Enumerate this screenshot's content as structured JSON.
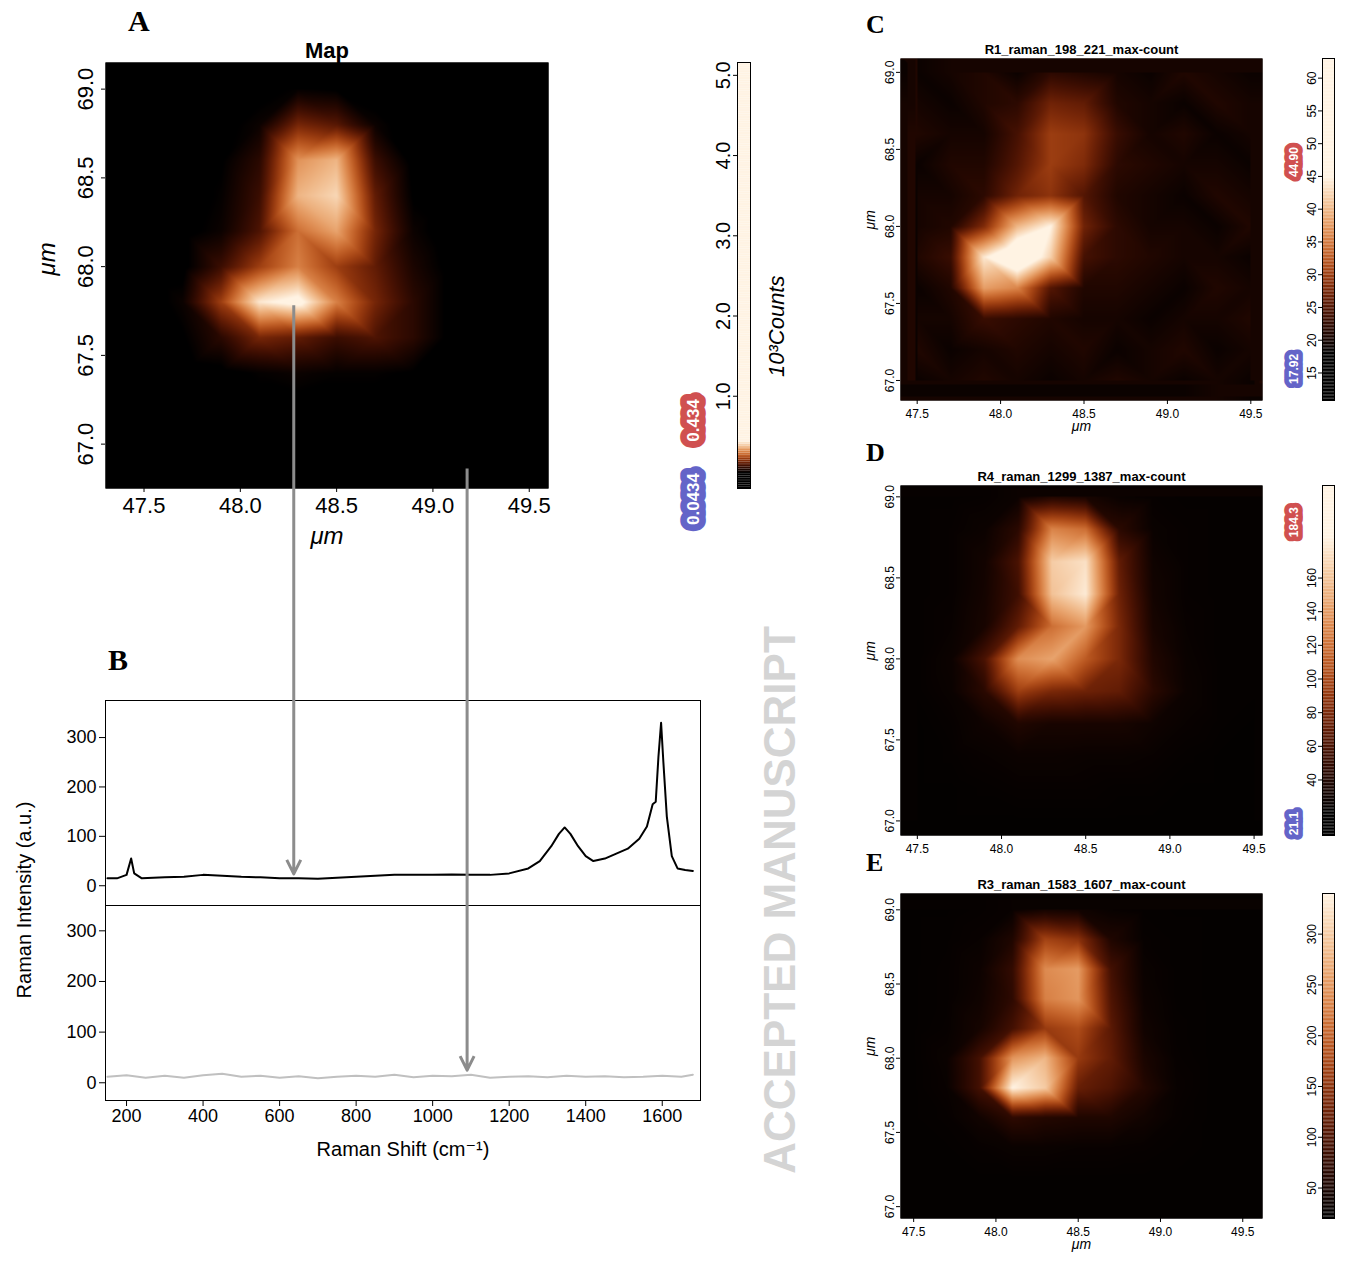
{
  "chart_data": [
    {
      "panel": "A",
      "type": "heatmap",
      "title": "Map",
      "xlabel": "μm",
      "ylabel": "μm",
      "xlim": [
        47.3,
        49.6
      ],
      "ylim": [
        66.75,
        69.15
      ],
      "xticks": [
        47.5,
        {
          "value": 48,
          "label": "48.0"
        },
        48.5,
        {
          "value": 49,
          "label": "49.0"
        },
        49.5
      ],
      "yticks": [
        {
          "value": 67,
          "label": "67.0"
        },
        67.5,
        {
          "value": 68,
          "label": "68.0"
        },
        68.5,
        {
          "value": 69,
          "label": "69.0"
        }
      ],
      "x": [
        47.5,
        47.7,
        47.9,
        48.1,
        48.3,
        48.5,
        48.7,
        48.9,
        49.1,
        49.3,
        49.5
      ],
      "y": [
        69.0,
        68.8,
        68.6,
        68.4,
        68.2,
        68.0,
        67.8,
        67.6,
        67.4,
        67.2,
        67.0
      ],
      "z": [
        [
          0.02,
          0.02,
          0.02,
          0.03,
          0.05,
          0.04,
          0.02,
          0.02,
          0.02,
          0.02,
          0.02
        ],
        [
          0.02,
          0.02,
          0.03,
          0.06,
          0.18,
          0.15,
          0.06,
          0.02,
          0.02,
          0.02,
          0.02
        ],
        [
          0.02,
          0.02,
          0.04,
          0.1,
          0.32,
          0.36,
          0.12,
          0.03,
          0.02,
          0.02,
          0.02
        ],
        [
          0.02,
          0.02,
          0.05,
          0.12,
          0.36,
          0.4,
          0.16,
          0.04,
          0.02,
          0.02,
          0.02
        ],
        [
          0.02,
          0.03,
          0.06,
          0.14,
          0.28,
          0.34,
          0.18,
          0.06,
          0.02,
          0.02,
          0.02
        ],
        [
          0.02,
          0.03,
          0.12,
          0.22,
          0.3,
          0.22,
          0.16,
          0.08,
          0.03,
          0.02,
          0.02
        ],
        [
          0.02,
          0.06,
          0.22,
          0.42,
          0.46,
          0.3,
          0.18,
          0.1,
          0.03,
          0.02,
          0.02
        ],
        [
          0.02,
          0.04,
          0.1,
          0.18,
          0.16,
          0.12,
          0.14,
          0.1,
          0.03,
          0.02,
          0.02
        ],
        [
          0.02,
          0.02,
          0.03,
          0.05,
          0.06,
          0.05,
          0.05,
          0.04,
          0.02,
          0.02,
          0.02
        ],
        [
          0.02,
          0.02,
          0.02,
          0.03,
          0.03,
          0.03,
          0.03,
          0.02,
          0.02,
          0.02,
          0.02
        ],
        [
          0.02,
          0.02,
          0.02,
          0.02,
          0.02,
          0.02,
          0.02,
          0.02,
          0.02,
          0.02,
          0.02
        ]
      ],
      "points": [
        {
          "x": 48.28,
          "y": 67.78
        },
        {
          "x": 49.18,
          "y": 66.86
        }
      ],
      "colorbar": {
        "label": "10³Counts",
        "lim": [
          -0.15,
          5.16
        ],
        "ticks": [
          {
            "value": 1,
            "label": "1.0"
          },
          {
            "value": 2,
            "label": "2.0"
          },
          {
            "value": 3,
            "label": "3.0"
          },
          {
            "value": 4,
            "label": "4.0"
          },
          {
            "value": 5,
            "label": "5.0"
          }
        ],
        "clim": [
          0.0434,
          0.434
        ]
      }
    },
    {
      "panel": "B",
      "type": "line",
      "xlabel": "Raman Shift (cm⁻¹)",
      "ylabel": "Raman Intensity (a.u.)",
      "xlim": [
        145,
        1700
      ],
      "xticks": [
        200,
        400,
        600,
        800,
        1000,
        1200,
        1400,
        1600
      ],
      "subplots": [
        {
          "ylim": [
            -40,
            375
          ],
          "yticks": [
            0,
            100,
            200,
            300
          ],
          "series": [
            {
              "color": "#000000",
              "x": [
                150,
                175,
                200,
                212,
                220,
                240,
                300,
                350,
                400,
                450,
                500,
                550,
                600,
                650,
                700,
                750,
                800,
                850,
                900,
                950,
                1000,
                1050,
                1100,
                1150,
                1200,
                1250,
                1280,
                1310,
                1330,
                1345,
                1360,
                1380,
                1400,
                1420,
                1450,
                1480,
                1510,
                1540,
                1560,
                1575,
                1583,
                1590,
                1597,
                1603,
                1612,
                1625,
                1640,
                1660,
                1680
              ],
              "values": [
                15,
                15,
                22,
                55,
                25,
                15,
                17,
                18,
                22,
                20,
                18,
                17,
                15,
                15,
                14,
                16,
                18,
                20,
                22,
                22,
                22,
                23,
                22,
                22,
                25,
                35,
                50,
                80,
                105,
                118,
                105,
                80,
                60,
                50,
                55,
                65,
                75,
                95,
                120,
                165,
                170,
                260,
                330,
                250,
                140,
                60,
                35,
                32,
                30
              ]
            }
          ]
        },
        {
          "ylim": [
            -35,
            350
          ],
          "yticks": [
            0,
            100,
            200,
            300
          ],
          "series": [
            {
              "color": "#c0c0c0",
              "x": [
                150,
                200,
                250,
                300,
                350,
                400,
                450,
                500,
                550,
                600,
                650,
                700,
                750,
                800,
                850,
                900,
                950,
                1000,
                1050,
                1100,
                1150,
                1200,
                1250,
                1300,
                1350,
                1400,
                1450,
                1500,
                1550,
                1600,
                1650,
                1680
              ],
              "values": [
                12,
                15,
                10,
                14,
                10,
                15,
                18,
                12,
                14,
                10,
                13,
                9,
                12,
                14,
                12,
                16,
                11,
                14,
                13,
                16,
                10,
                12,
                13,
                11,
                14,
                12,
                13,
                11,
                12,
                14,
                12,
                16
              ]
            }
          ]
        }
      ]
    },
    {
      "panel": "C",
      "type": "heatmap",
      "title": "R1_raman_198_221_max-count",
      "xlabel": "μm",
      "ylabel": "μm",
      "xlim": [
        47.4,
        49.57
      ],
      "ylim": [
        66.87,
        69.09
      ],
      "xticks": [
        47.5,
        {
          "value": 48,
          "label": "48.0"
        },
        48.5,
        {
          "value": 49,
          "label": "49.0"
        },
        49.5
      ],
      "yticks": [
        {
          "value": 67,
          "label": "67.0"
        },
        67.5,
        {
          "value": 68,
          "label": "68.0"
        },
        68.5,
        {
          "value": 69,
          "label": "69.0"
        }
      ],
      "x": [
        47.5,
        47.7,
        47.9,
        48.1,
        48.3,
        48.5,
        48.7,
        48.9,
        49.1,
        49.3,
        49.5
      ],
      "y": [
        69.0,
        68.8,
        68.6,
        68.4,
        68.2,
        68.0,
        67.8,
        67.6,
        67.4,
        67.2,
        67.0
      ],
      "z": [
        [
          19,
          20,
          21,
          19,
          22,
          21,
          20,
          19,
          21,
          20,
          19
        ],
        [
          20,
          19,
          21,
          22,
          27,
          26,
          21,
          20,
          19,
          21,
          20
        ],
        [
          21,
          20,
          20,
          24,
          30,
          29,
          23,
          20,
          21,
          19,
          20
        ],
        [
          19,
          21,
          21,
          25,
          30,
          28,
          22,
          21,
          20,
          20,
          19
        ],
        [
          20,
          20,
          22,
          27,
          29,
          25,
          21,
          20,
          19,
          21,
          20
        ],
        [
          20,
          21,
          28,
          40,
          45,
          27,
          22,
          20,
          20,
          19,
          21
        ],
        [
          21,
          23,
          44,
          52,
          42,
          24,
          22,
          21,
          20,
          20,
          19
        ],
        [
          19,
          21,
          38,
          36,
          25,
          21,
          21,
          20,
          19,
          21,
          20
        ],
        [
          20,
          20,
          23,
          22,
          21,
          20,
          20,
          19,
          20,
          20,
          21
        ],
        [
          21,
          19,
          20,
          21,
          20,
          21,
          19,
          20,
          21,
          19,
          20
        ],
        [
          19,
          20,
          21,
          20,
          19,
          20,
          21,
          20,
          19,
          20,
          19
        ]
      ],
      "colorbar": {
        "lim": [
          10.8,
          63
        ],
        "ticks": [
          15,
          20,
          25,
          30,
          35,
          40,
          45,
          50,
          55,
          60
        ],
        "clim": [
          17.92,
          {
            "value": 44.9,
            "label": "44.90"
          }
        ]
      }
    },
    {
      "panel": "D",
      "type": "heatmap",
      "title": "R4_raman_1299_1387_max-count",
      "ylabel": "μm",
      "xlim": [
        47.4,
        49.55
      ],
      "ylim": [
        66.91,
        69.07
      ],
      "xticks": [
        47.5,
        {
          "value": 48,
          "label": "48.0"
        },
        48.5,
        {
          "value": 49,
          "label": "49.0"
        },
        49.5
      ],
      "yticks": [
        {
          "value": 67,
          "label": "67.0"
        },
        67.5,
        {
          "value": 68,
          "label": "68.0"
        },
        68.5,
        {
          "value": 69,
          "label": "69.0"
        }
      ],
      "x": [
        47.5,
        47.7,
        47.9,
        48.1,
        48.3,
        48.5,
        48.7,
        48.9,
        49.1,
        49.3,
        49.5
      ],
      "y": [
        69.0,
        68.8,
        68.6,
        68.4,
        68.2,
        68.0,
        67.8,
        67.6,
        67.4,
        67.2,
        67.0
      ],
      "z": [
        [
          24,
          24,
          25,
          28,
          40,
          35,
          27,
          25,
          24,
          24,
          24
        ],
        [
          24,
          25,
          28,
          45,
          130,
          120,
          45,
          27,
          25,
          24,
          24
        ],
        [
          24,
          25,
          32,
          60,
          165,
          175,
          70,
          30,
          25,
          24,
          24
        ],
        [
          24,
          25,
          33,
          55,
          160,
          180,
          75,
          32,
          25,
          24,
          24
        ],
        [
          24,
          26,
          35,
          70,
          120,
          140,
          80,
          35,
          26,
          24,
          24
        ],
        [
          24,
          28,
          60,
          135,
          145,
          110,
          80,
          40,
          27,
          24,
          24
        ],
        [
          24,
          27,
          45,
          95,
          80,
          75,
          70,
          45,
          28,
          24,
          24
        ],
        [
          23,
          25,
          30,
          40,
          35,
          35,
          35,
          30,
          26,
          24,
          23
        ],
        [
          23,
          24,
          26,
          28,
          28,
          27,
          27,
          26,
          24,
          23,
          23
        ],
        [
          23,
          23,
          24,
          25,
          25,
          25,
          24,
          24,
          23,
          23,
          23
        ],
        [
          23,
          23,
          23,
          23,
          23,
          23,
          23,
          23,
          23,
          23,
          23
        ]
      ],
      "colorbar": {
        "lim": [
          7,
          215
        ],
        "ticks": [
          40,
          60,
          80,
          100,
          120,
          140,
          160
        ],
        "clim": [
          21.1,
          184.3
        ]
      }
    },
    {
      "panel": "E",
      "type": "heatmap",
      "title": "R3_raman_1583_1607_max-count",
      "xlabel": "μm",
      "ylabel": "μm",
      "xlim": [
        47.42,
        49.62
      ],
      "ylim": [
        66.92,
        69.11
      ],
      "xticks": [
        47.5,
        {
          "value": 48,
          "label": "48.0"
        },
        48.5,
        {
          "value": 49,
          "label": "49.0"
        },
        49.5
      ],
      "yticks": [
        {
          "value": 67,
          "label": "67.0"
        },
        67.5,
        {
          "value": 68,
          "label": "68.0"
        },
        68.5,
        {
          "value": 69,
          "label": "69.0"
        }
      ],
      "x": [
        47.5,
        47.7,
        47.9,
        48.1,
        48.3,
        48.5,
        48.7,
        48.9,
        49.1,
        49.3,
        49.5
      ],
      "y": [
        69.0,
        68.8,
        68.6,
        68.4,
        68.2,
        68.0,
        67.8,
        67.6,
        67.4,
        67.2,
        67.0
      ],
      "z": [
        [
          25,
          25,
          27,
          30,
          45,
          40,
          30,
          26,
          25,
          25,
          25
        ],
        [
          25,
          26,
          30,
          55,
          170,
          150,
          55,
          28,
          26,
          25,
          25
        ],
        [
          25,
          27,
          35,
          75,
          240,
          255,
          90,
          32,
          26,
          25,
          25
        ],
        [
          25,
          27,
          38,
          70,
          230,
          250,
          100,
          35,
          26,
          25,
          25
        ],
        [
          25,
          28,
          45,
          90,
          160,
          180,
          110,
          40,
          27,
          25,
          25
        ],
        [
          25,
          32,
          90,
          250,
          280,
          160,
          115,
          50,
          28,
          25,
          25
        ],
        [
          25,
          30,
          90,
          340,
          300,
          120,
          100,
          60,
          30,
          25,
          25
        ],
        [
          25,
          27,
          40,
          70,
          60,
          55,
          55,
          40,
          28,
          25,
          25
        ],
        [
          25,
          25,
          28,
          32,
          32,
          30,
          30,
          28,
          26,
          25,
          25
        ],
        [
          25,
          25,
          25,
          25,
          25,
          25,
          25,
          25,
          25,
          25,
          25
        ],
        [
          25,
          25,
          25,
          25,
          25,
          25,
          25,
          25,
          25,
          25,
          25
        ]
      ],
      "colorbar": {
        "lim": [
          20,
          340
        ],
        "ticks": [
          50,
          100,
          150,
          200,
          250,
          300
        ]
      }
    }
  ],
  "watermark": "ACCEPTED MANUSCRIPT"
}
